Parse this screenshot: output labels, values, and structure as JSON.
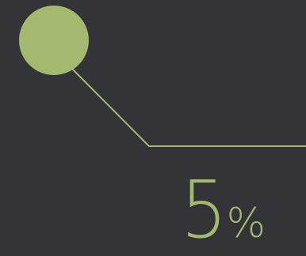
{
  "stat": {
    "value": "5",
    "unit": "%"
  },
  "colors": {
    "background": "#333338",
    "accent": "#a5b870"
  }
}
